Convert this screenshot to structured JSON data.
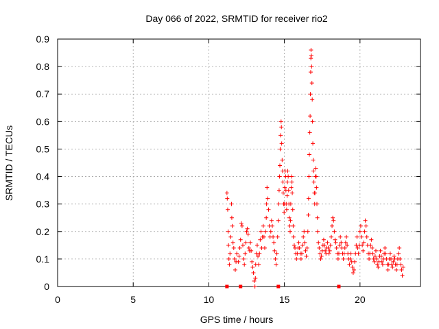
{
  "chart_data": {
    "type": "scatter",
    "title": "Day 066 of 2022, SRMTID for receiver rio2",
    "xlabel": "GPS time / hours",
    "ylabel": "SRMTID / TECUs",
    "xlim": [
      0,
      24
    ],
    "ylim": [
      0,
      0.9
    ],
    "x_ticks": [
      0,
      5,
      10,
      15,
      20
    ],
    "x_tick_labels": [
      "0",
      "5",
      "10",
      "15",
      "20"
    ],
    "y_ticks": [
      0,
      0.1,
      0.2,
      0.3,
      0.4,
      0.5,
      0.6,
      0.7,
      0.8,
      0.9
    ],
    "y_tick_labels": [
      "0",
      "0.1",
      "0.2",
      "0.3",
      "0.4",
      "0.5",
      "0.6",
      "0.7",
      "0.8",
      "0.9"
    ],
    "grid": true,
    "marker": "+",
    "color": "#ff0000",
    "series": [
      {
        "name": "SRMTID",
        "points": [
          [
            11.2,
            0.34
          ],
          [
            11.22,
            0.32
          ],
          [
            11.25,
            0.28
          ],
          [
            11.28,
            0.2
          ],
          [
            11.3,
            0.15
          ],
          [
            11.33,
            0.1
          ],
          [
            11.36,
            0.08
          ],
          [
            11.4,
            0.12
          ],
          [
            11.45,
            0.18
          ],
          [
            11.5,
            0.3
          ],
          [
            11.52,
            0.25
          ],
          [
            11.55,
            0.22
          ],
          [
            11.6,
            0.16
          ],
          [
            11.65,
            0.14
          ],
          [
            11.7,
            0.1
          ],
          [
            11.75,
            0.06
          ],
          [
            11.8,
            0.09
          ],
          [
            11.85,
            0.12
          ],
          [
            11.95,
            0.09
          ],
          [
            12.0,
            0.11
          ],
          [
            12.05,
            0.14
          ],
          [
            12.1,
            0.17
          ],
          [
            12.15,
            0.23
          ],
          [
            12.2,
            0.22
          ],
          [
            12.25,
            0.15
          ],
          [
            12.3,
            0.1
          ],
          [
            12.35,
            0.08
          ],
          [
            12.4,
            0.12
          ],
          [
            12.45,
            0.16
          ],
          [
            12.5,
            0.2
          ],
          [
            12.55,
            0.21
          ],
          [
            12.6,
            0.19
          ],
          [
            12.65,
            0.14
          ],
          [
            12.7,
            0.13
          ],
          [
            12.75,
            0.16
          ],
          [
            12.8,
            0.13
          ],
          [
            12.85,
            0.09
          ],
          [
            12.9,
            0.07
          ],
          [
            12.95,
            0.05
          ],
          [
            13.0,
            0.02
          ],
          [
            13.05,
            0.0
          ],
          [
            13.08,
            0.03
          ],
          [
            13.1,
            0.08
          ],
          [
            13.15,
            0.12
          ],
          [
            13.2,
            0.15
          ],
          [
            13.25,
            0.11
          ],
          [
            13.3,
            0.08
          ],
          [
            13.35,
            0.12
          ],
          [
            13.4,
            0.17
          ],
          [
            13.45,
            0.2
          ],
          [
            13.5,
            0.14
          ],
          [
            13.55,
            0.18
          ],
          [
            13.6,
            0.22
          ],
          [
            13.65,
            0.18
          ],
          [
            13.7,
            0.14
          ],
          [
            13.75,
            0.2
          ],
          [
            13.8,
            0.25
          ],
          [
            13.82,
            0.3
          ],
          [
            13.85,
            0.36
          ],
          [
            13.9,
            0.32
          ],
          [
            13.95,
            0.28
          ],
          [
            14.0,
            0.22
          ],
          [
            14.05,
            0.18
          ],
          [
            14.1,
            0.2
          ],
          [
            14.15,
            0.24
          ],
          [
            14.2,
            0.22
          ],
          [
            14.25,
            0.18
          ],
          [
            14.3,
            0.16
          ],
          [
            14.35,
            0.13
          ],
          [
            14.4,
            0.1
          ],
          [
            14.45,
            0.08
          ],
          [
            14.5,
            0.12
          ],
          [
            14.55,
            0.18
          ],
          [
            14.6,
            0.24
          ],
          [
            14.62,
            0.3
          ],
          [
            14.65,
            0.35
          ],
          [
            14.68,
            0.4
          ],
          [
            14.7,
            0.44
          ],
          [
            14.72,
            0.5
          ],
          [
            14.75,
            0.55
          ],
          [
            14.78,
            0.6
          ],
          [
            14.8,
            0.58
          ],
          [
            14.82,
            0.52
          ],
          [
            14.85,
            0.46
          ],
          [
            14.88,
            0.42
          ],
          [
            14.9,
            0.38
          ],
          [
            14.92,
            0.34
          ],
          [
            14.95,
            0.3
          ],
          [
            14.98,
            0.27
          ],
          [
            15.0,
            0.3
          ],
          [
            15.02,
            0.36
          ],
          [
            15.05,
            0.42
          ],
          [
            15.08,
            0.4
          ],
          [
            15.1,
            0.35
          ],
          [
            15.12,
            0.3
          ],
          [
            15.15,
            0.28
          ],
          [
            15.18,
            0.33
          ],
          [
            15.2,
            0.38
          ],
          [
            15.22,
            0.42
          ],
          [
            15.25,
            0.4
          ],
          [
            15.28,
            0.35
          ],
          [
            15.3,
            0.3
          ],
          [
            15.32,
            0.25
          ],
          [
            15.35,
            0.22
          ],
          [
            15.38,
            0.2
          ],
          [
            15.4,
            0.24
          ],
          [
            15.42,
            0.3
          ],
          [
            15.45,
            0.36
          ],
          [
            15.48,
            0.4
          ],
          [
            15.5,
            0.38
          ],
          [
            15.52,
            0.34
          ],
          [
            15.55,
            0.28
          ],
          [
            15.58,
            0.22
          ],
          [
            15.6,
            0.18
          ],
          [
            15.65,
            0.15
          ],
          [
            15.7,
            0.14
          ],
          [
            15.75,
            0.12
          ],
          [
            15.8,
            0.1
          ],
          [
            15.85,
            0.12
          ],
          [
            15.9,
            0.14
          ],
          [
            15.95,
            0.16
          ],
          [
            16.0,
            0.14
          ],
          [
            16.05,
            0.12
          ],
          [
            16.1,
            0.1
          ],
          [
            16.15,
            0.12
          ],
          [
            16.2,
            0.15
          ],
          [
            16.25,
            0.18
          ],
          [
            16.3,
            0.2
          ],
          [
            16.35,
            0.16
          ],
          [
            16.4,
            0.13
          ],
          [
            16.45,
            0.11
          ],
          [
            16.5,
            0.14
          ],
          [
            16.55,
            0.2
          ],
          [
            16.58,
            0.26
          ],
          [
            16.6,
            0.32
          ],
          [
            16.62,
            0.4
          ],
          [
            16.65,
            0.48
          ],
          [
            16.68,
            0.56
          ],
          [
            16.7,
            0.62
          ],
          [
            16.72,
            0.7
          ],
          [
            16.74,
            0.78
          ],
          [
            16.75,
            0.83
          ],
          [
            16.76,
            0.86
          ],
          [
            16.78,
            0.84
          ],
          [
            16.8,
            0.8
          ],
          [
            16.82,
            0.74
          ],
          [
            16.84,
            0.68
          ],
          [
            16.86,
            0.6
          ],
          [
            16.88,
            0.52
          ],
          [
            16.9,
            0.46
          ],
          [
            16.92,
            0.42
          ],
          [
            16.95,
            0.38
          ],
          [
            16.98,
            0.34
          ],
          [
            17.0,
            0.3
          ],
          [
            17.02,
            0.34
          ],
          [
            17.05,
            0.4
          ],
          [
            17.08,
            0.43
          ],
          [
            17.1,
            0.4
          ],
          [
            17.12,
            0.36
          ],
          [
            17.15,
            0.3
          ],
          [
            17.18,
            0.25
          ],
          [
            17.2,
            0.2
          ],
          [
            17.25,
            0.16
          ],
          [
            17.3,
            0.14
          ],
          [
            17.35,
            0.12
          ],
          [
            17.4,
            0.1
          ],
          [
            17.45,
            0.11
          ],
          [
            17.5,
            0.13
          ],
          [
            17.55,
            0.15
          ],
          [
            17.6,
            0.17
          ],
          [
            17.65,
            0.15
          ],
          [
            17.7,
            0.13
          ],
          [
            17.75,
            0.12
          ],
          [
            17.8,
            0.14
          ],
          [
            17.85,
            0.16
          ],
          [
            17.9,
            0.14
          ],
          [
            17.95,
            0.12
          ],
          [
            18.0,
            0.13
          ],
          [
            18.05,
            0.15
          ],
          [
            18.1,
            0.18
          ],
          [
            18.15,
            0.22
          ],
          [
            18.2,
            0.25
          ],
          [
            18.25,
            0.24
          ],
          [
            18.3,
            0.2
          ],
          [
            18.35,
            0.17
          ],
          [
            18.4,
            0.16
          ],
          [
            18.45,
            0.14
          ],
          [
            18.5,
            0.12
          ],
          [
            18.55,
            0.1
          ],
          [
            18.6,
            0.12
          ],
          [
            18.65,
            0.15
          ],
          [
            18.7,
            0.18
          ],
          [
            18.75,
            0.16
          ],
          [
            18.8,
            0.14
          ],
          [
            18.85,
            0.12
          ],
          [
            18.9,
            0.1
          ],
          [
            18.95,
            0.12
          ],
          [
            19.0,
            0.14
          ],
          [
            19.05,
            0.16
          ],
          [
            19.1,
            0.18
          ],
          [
            19.15,
            0.15
          ],
          [
            19.2,
            0.12
          ],
          [
            19.25,
            0.1
          ],
          [
            19.3,
            0.08
          ],
          [
            19.35,
            0.1
          ],
          [
            19.4,
            0.12
          ],
          [
            19.45,
            0.09
          ],
          [
            19.5,
            0.07
          ],
          [
            19.55,
            0.05
          ],
          [
            19.6,
            0.06
          ],
          [
            19.65,
            0.09
          ],
          [
            19.7,
            0.12
          ],
          [
            19.75,
            0.15
          ],
          [
            19.8,
            0.18
          ],
          [
            19.85,
            0.14
          ],
          [
            19.9,
            0.12
          ],
          [
            19.95,
            0.15
          ],
          [
            20.0,
            0.2
          ],
          [
            20.05,
            0.22
          ],
          [
            20.1,
            0.18
          ],
          [
            20.15,
            0.15
          ],
          [
            20.2,
            0.13
          ],
          [
            20.25,
            0.16
          ],
          [
            20.3,
            0.2
          ],
          [
            20.35,
            0.24
          ],
          [
            20.4,
            0.22
          ],
          [
            20.45,
            0.18
          ],
          [
            20.5,
            0.15
          ],
          [
            20.55,
            0.12
          ],
          [
            20.6,
            0.1
          ],
          [
            20.65,
            0.12
          ],
          [
            20.7,
            0.15
          ],
          [
            20.75,
            0.17
          ],
          [
            20.8,
            0.14
          ],
          [
            20.85,
            0.12
          ],
          [
            20.9,
            0.1
          ],
          [
            20.95,
            0.09
          ],
          [
            21.0,
            0.11
          ],
          [
            21.05,
            0.13
          ],
          [
            21.1,
            0.1
          ],
          [
            21.15,
            0.08
          ],
          [
            21.2,
            0.07
          ],
          [
            21.25,
            0.09
          ],
          [
            21.3,
            0.11
          ],
          [
            21.35,
            0.13
          ],
          [
            21.4,
            0.11
          ],
          [
            21.45,
            0.09
          ],
          [
            21.5,
            0.08
          ],
          [
            21.55,
            0.1
          ],
          [
            21.6,
            0.12
          ],
          [
            21.65,
            0.14
          ],
          [
            21.7,
            0.12
          ],
          [
            21.75,
            0.1
          ],
          [
            21.8,
            0.08
          ],
          [
            21.85,
            0.06
          ],
          [
            21.9,
            0.08
          ],
          [
            21.95,
            0.1
          ],
          [
            22.0,
            0.12
          ],
          [
            22.05,
            0.1
          ],
          [
            22.1,
            0.08
          ],
          [
            22.15,
            0.07
          ],
          [
            22.2,
            0.09
          ],
          [
            22.25,
            0.11
          ],
          [
            22.3,
            0.1
          ],
          [
            22.35,
            0.08
          ],
          [
            22.4,
            0.06
          ],
          [
            22.45,
            0.08
          ],
          [
            22.5,
            0.1
          ],
          [
            22.55,
            0.12
          ],
          [
            22.6,
            0.14
          ],
          [
            22.65,
            0.1
          ],
          [
            22.7,
            0.08
          ],
          [
            22.75,
            0.06
          ],
          [
            22.8,
            0.04
          ],
          [
            22.85,
            0.07
          ]
        ]
      }
    ],
    "bottom_markers_x": [
      11.2,
      12.1,
      14.6,
      18.6
    ]
  }
}
